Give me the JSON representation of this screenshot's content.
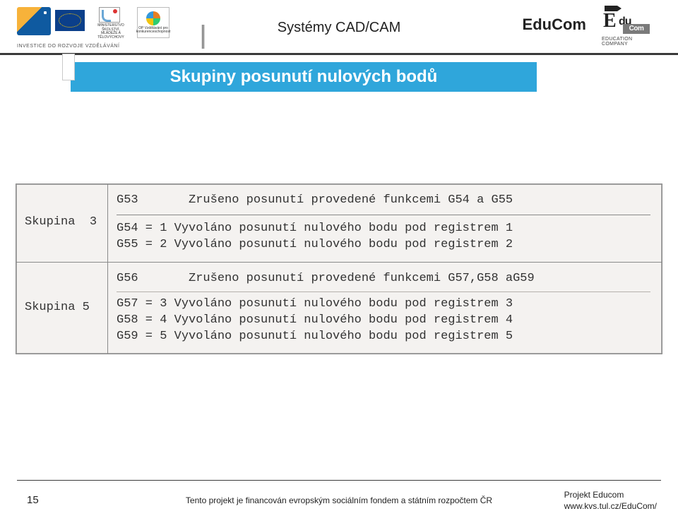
{
  "header": {
    "center_title": "Systémy CAD/CAM",
    "brand": "EduCom",
    "esf_small": "evropský\nsociální\nfond v ČR",
    "eu_small": "EVROPSKÁ UNIE",
    "msmt_small": "MINISTERSTVO ŠKOLSTVÍ,\nMLÁDEŽE A TĚLOVÝCHOVY",
    "op_small": "OP Vzdělávání\npro konkurenceschopnost",
    "invest_line": "INVESTICE DO ROZVOJE VZDĚLÁVÁNÍ",
    "educom_du": "du",
    "educom_com": "Com",
    "educom_sub": "EDUCATION COMPANY"
  },
  "title": "Skupiny posunutí nulových bodů",
  "table": {
    "group3_label": "Skupina  3",
    "group3_top": "G53       Zrušeno posunutí provedené funkcemi G54 a G55",
    "group3_l1": "G54 = 1 Vyvoláno posunutí nulového bodu pod registrem 1",
    "group3_l2": "G55 = 2 Vyvoláno posunutí nulového bodu pod registrem 2",
    "group5_label": "Skupina 5",
    "group5_top": "G56       Zrušeno posunutí provedené funkcemi G57,G58 aG59",
    "group5_l1": "G57 = 3 Vyvoláno posunutí nulového bodu pod registrem 3",
    "group5_l2": "G58 = 4 Vyvoláno posunutí nulového bodu pod registrem 4",
    "group5_l3": "G59 = 5 Vyvoláno posunutí nulového bodu pod registrem 5"
  },
  "footer": {
    "page": "15",
    "center": "Tento projekt je financován evropským sociálním fondem a státním rozpočtem ČR",
    "right1": "Projekt Educom",
    "right2": "www.kvs.tul.cz/EduCom/"
  },
  "colors": {
    "title_bg": "#2fa6db",
    "title_fg": "#ffffff",
    "rule": "#3a3a3a",
    "table_bg": "#f4f2f0",
    "table_border": "#8a8a8a"
  }
}
